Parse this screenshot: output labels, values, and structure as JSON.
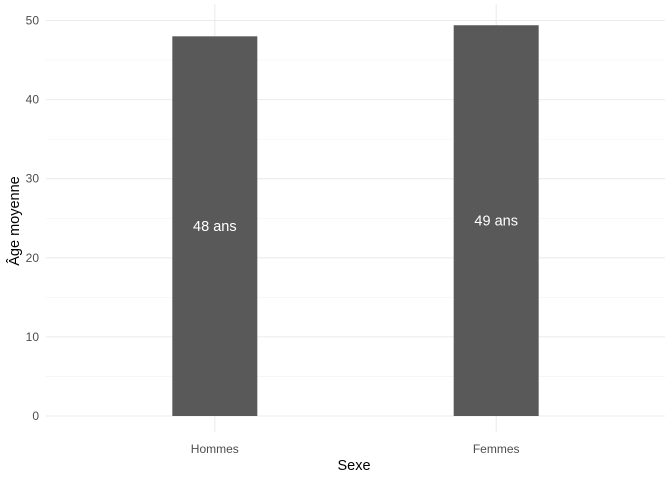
{
  "chart_data": {
    "type": "bar",
    "categories": [
      "Hommes",
      "Femmes"
    ],
    "values": [
      48,
      49.4
    ],
    "data_labels": [
      "48 ans",
      "49 ans"
    ],
    "title": "",
    "xlabel": "Sexe",
    "ylabel": "Âge moyenne",
    "ylim": [
      0,
      51.9
    ],
    "yticks": [
      0,
      10,
      20,
      30,
      40,
      50
    ],
    "ytick_labels": [
      "0",
      "10",
      "20",
      "30",
      "40",
      "50"
    ],
    "grid": true,
    "legend": "none",
    "colors": {
      "bar": "#595959",
      "label": "#ffffff",
      "grid_major": "#ebebeb",
      "grid_minor": "#f2f2f2"
    }
  }
}
